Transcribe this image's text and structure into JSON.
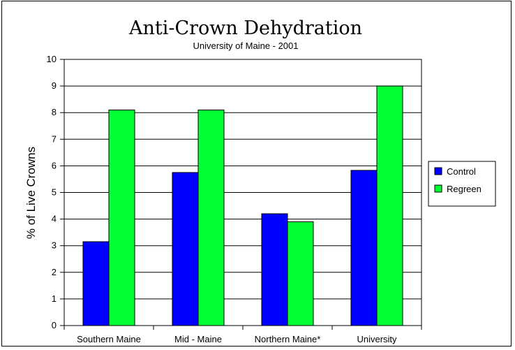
{
  "chart_data": {
    "type": "bar",
    "title": "Anti-Crown Dehydration",
    "subtitle": "University of Maine - 2001",
    "xlabel": "",
    "ylabel": "% of Live Crowns",
    "ylim": [
      0,
      10
    ],
    "yticks": [
      "0",
      "1",
      "2",
      "3",
      "4",
      "5",
      "6",
      "7",
      "8",
      "9",
      "10"
    ],
    "categories": [
      "Southern Maine",
      "Mid - Maine",
      "Northern Maine*",
      "University"
    ],
    "series": [
      {
        "name": "Control",
        "color": "#0000ff",
        "values": [
          3.15,
          5.75,
          4.2,
          5.83
        ]
      },
      {
        "name": "Regreen",
        "color": "#00ff33",
        "values": [
          8.1,
          8.1,
          3.9,
          9.0
        ]
      }
    ],
    "grid": true,
    "legend_position": "right"
  }
}
